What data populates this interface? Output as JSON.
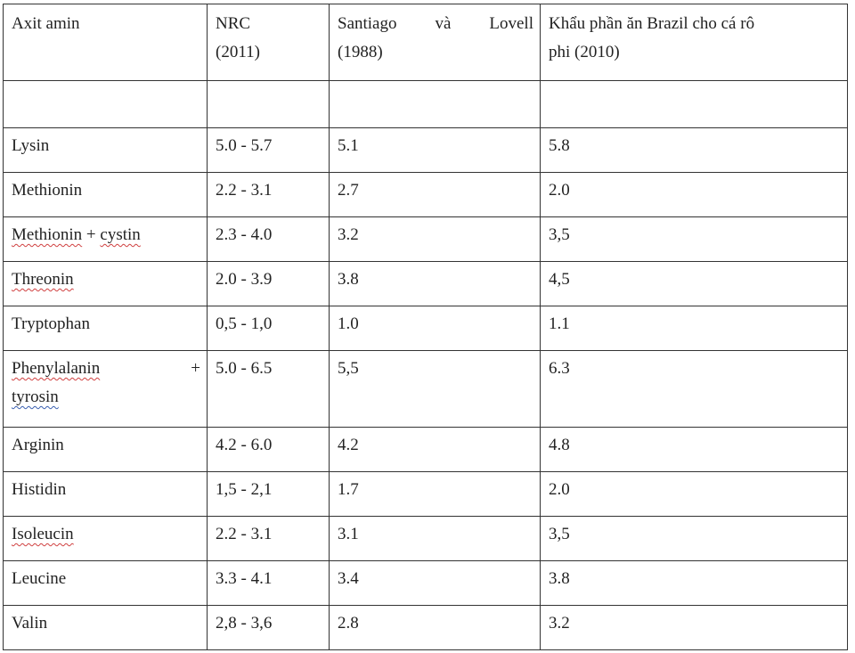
{
  "table": {
    "headers": {
      "col1": "Axit amin",
      "col2_line1": "NRC",
      "col2_line2": "(2011)",
      "col3_word1": "Santiago",
      "col3_word2": "và",
      "col3_word3": "Lovell",
      "col3_line2": "(1988)",
      "col4_line1": "Khẩu phần ăn Brazil cho cá rô",
      "col4_line2": "phi (2010)"
    },
    "rows": [
      {
        "name": "Lysin",
        "nrc": "5.0 - 5.7",
        "santiago": "5.1",
        "brazil": "5.8"
      },
      {
        "name": "Methionin",
        "nrc": "2.2 - 3.1",
        "santiago": "2.7",
        "brazil": "2.0"
      },
      {
        "name_a": "Methionin",
        "name_b": "+",
        "name_c": "cystin",
        "nrc": "2.3 - 4.0",
        "santiago": "3.2",
        "brazil": "3,5"
      },
      {
        "name": "Threonin",
        "nrc": "2.0 - 3.9",
        "santiago": "3.8",
        "brazil": "4,5"
      },
      {
        "name": "Tryptophan",
        "nrc": "0,5 - 1,0",
        "santiago": "1.0",
        "brazil": "1.1"
      },
      {
        "name_a": "Phenylalanin",
        "name_b": "+",
        "name_c": "tyrosin",
        "nrc": "5.0 - 6.5",
        "santiago": "5,5",
        "brazil": "6.3"
      },
      {
        "name": "Arginin",
        "nrc": "4.2 - 6.0",
        "santiago": "4.2",
        "brazil": "4.8"
      },
      {
        "name": "Histidin",
        "nrc": "1,5 - 2,1",
        "santiago": "1.7",
        "brazil": "2.0"
      },
      {
        "name": "Isoleucin",
        "nrc": "2.2 - 3.1",
        "santiago": "3.1",
        "brazil": "3,5"
      },
      {
        "name": "Leucine",
        "nrc": "3.3 - 4.1",
        "santiago": "3.4",
        "brazil": "3.8"
      },
      {
        "name": "Valin",
        "nrc": "2,8 - 3,6",
        "santiago": "2.8",
        "brazil": "3.2"
      }
    ]
  }
}
